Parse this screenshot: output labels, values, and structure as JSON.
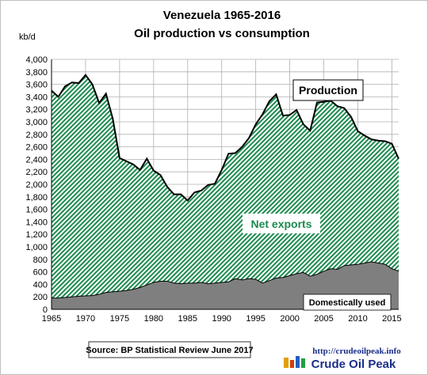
{
  "chart_data": {
    "type": "area",
    "title": "Venezuela 1965-2016",
    "subtitle": "Oil production vs consumption",
    "ylabel": "kb/d",
    "xlabel": "",
    "xlim": [
      1965,
      2016
    ],
    "ylim": [
      0,
      4000
    ],
    "x_ticks": [
      "1965",
      "1970",
      "1975",
      "1980",
      "1985",
      "1990",
      "1995",
      "2000",
      "2005",
      "2010",
      "2015"
    ],
    "y_ticks": [
      "0",
      "200",
      "400",
      "600",
      "800",
      "1,000",
      "1,200",
      "1,400",
      "1,600",
      "1,800",
      "2,000",
      "2,200",
      "2,400",
      "2,600",
      "2,800",
      "3,000",
      "3,200",
      "3,400",
      "3,600",
      "3,800",
      "4,000"
    ],
    "grid": true,
    "x": [
      1965,
      1966,
      1967,
      1968,
      1969,
      1970,
      1971,
      1972,
      1973,
      1974,
      1975,
      1976,
      1977,
      1978,
      1979,
      1980,
      1981,
      1982,
      1983,
      1984,
      1985,
      1986,
      1987,
      1988,
      1989,
      1990,
      1991,
      1992,
      1993,
      1994,
      1995,
      1996,
      1997,
      1998,
      1999,
      2000,
      2001,
      2002,
      2003,
      2004,
      2005,
      2006,
      2007,
      2008,
      2009,
      2010,
      2011,
      2012,
      2013,
      2014,
      2015,
      2016
    ],
    "series": [
      {
        "name": "Production",
        "color": "#000000",
        "values": [
          3500,
          3400,
          3570,
          3630,
          3620,
          3750,
          3600,
          3300,
          3450,
          3050,
          2420,
          2370,
          2320,
          2230,
          2410,
          2220,
          2150,
          1960,
          1840,
          1840,
          1740,
          1870,
          1900,
          1990,
          2010,
          2230,
          2490,
          2500,
          2600,
          2740,
          2960,
          3120,
          3330,
          3440,
          3100,
          3110,
          3190,
          2960,
          2860,
          3310,
          3320,
          3340,
          3250,
          3220,
          3080,
          2850,
          2780,
          2720,
          2700,
          2690,
          2650,
          2410
        ]
      },
      {
        "name": "Domestically used",
        "color": "#7f7f7f",
        "values": [
          180,
          180,
          190,
          200,
          210,
          215,
          220,
          240,
          270,
          280,
          290,
          300,
          320,
          350,
          390,
          430,
          450,
          450,
          420,
          410,
          420,
          420,
          430,
          410,
          420,
          430,
          440,
          490,
          470,
          490,
          480,
          420,
          460,
          500,
          510,
          540,
          570,
          590,
          530,
          560,
          610,
          650,
          640,
          700,
          710,
          720,
          740,
          760,
          740,
          720,
          650,
          610
        ]
      }
    ],
    "annotations": [
      "Production",
      "Net exports",
      "Domestically used"
    ],
    "net_exports_label": "Net exports",
    "fill_colors": {
      "net_exports_hatch": "#1c8a4f",
      "domestic": "#7f7f7f"
    },
    "source": "Source: BP Statistical Review June 2017"
  },
  "logo": {
    "url": "http://crudeoilpeak.info",
    "name": "Crude Oil Peak"
  }
}
